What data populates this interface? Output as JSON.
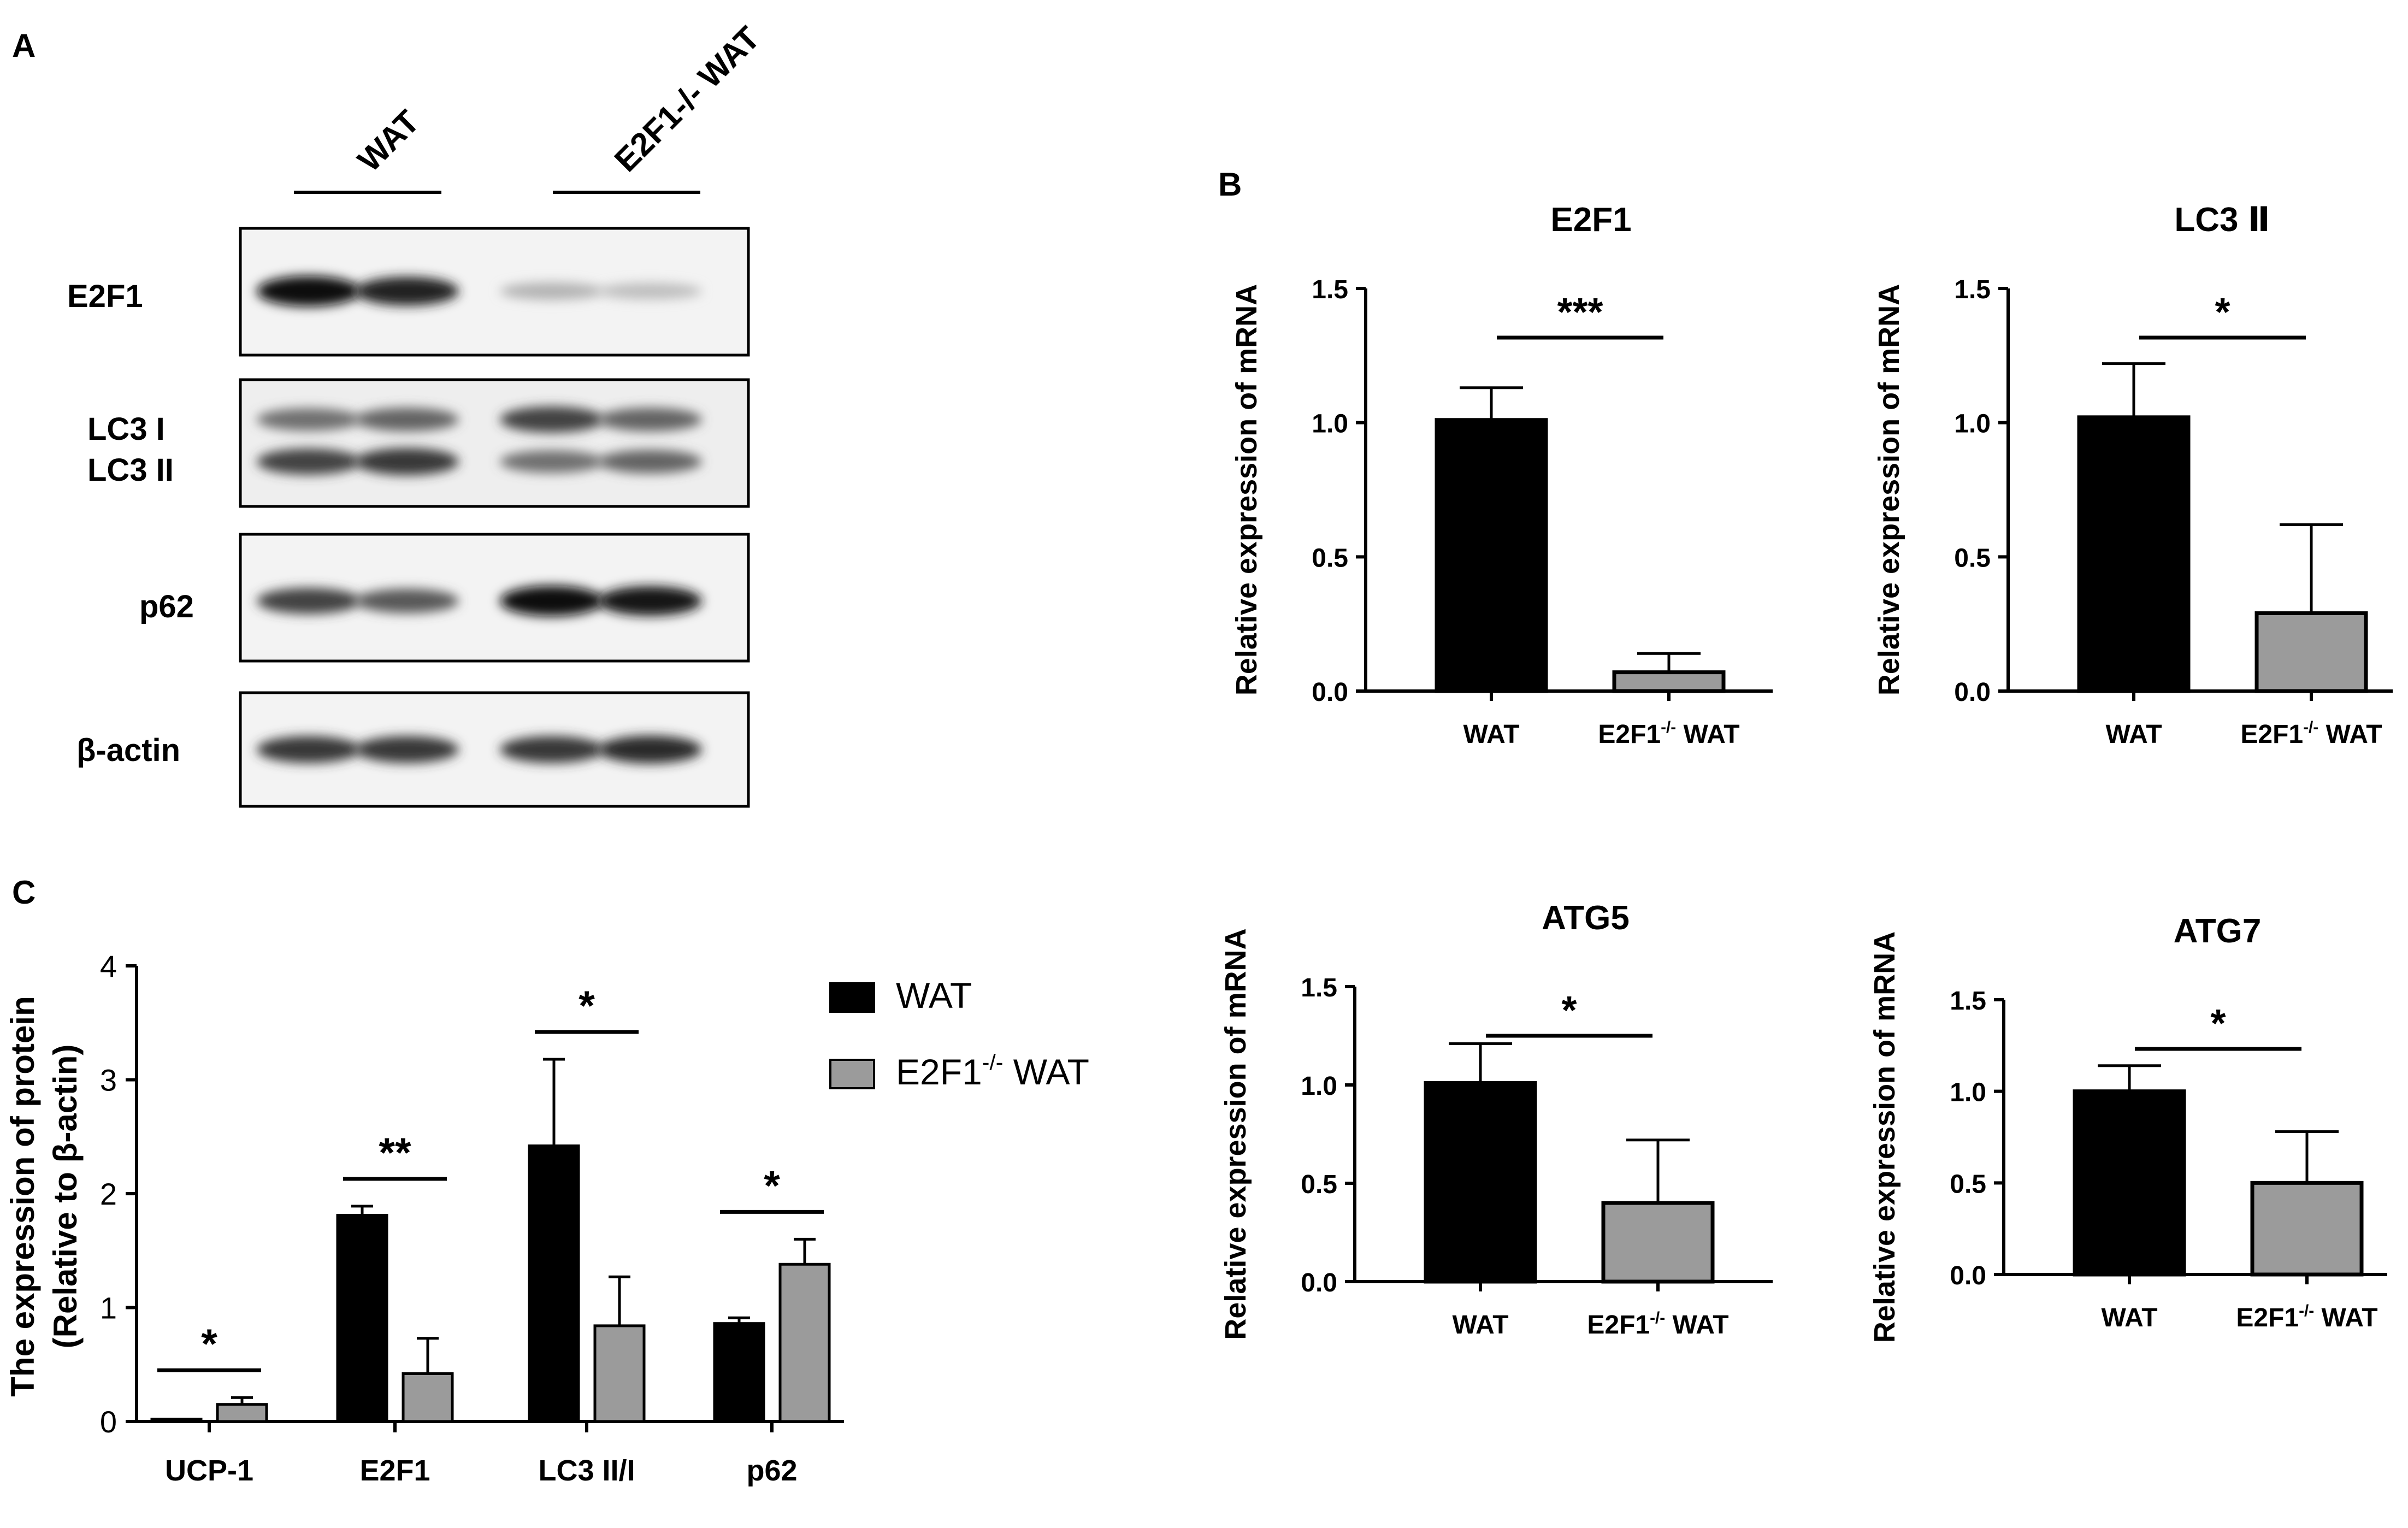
{
  "panels": {
    "A": "A",
    "B": "B",
    "C": "C"
  },
  "blot": {
    "group_labels": [
      "WAT",
      "E2F1-/- WAT"
    ],
    "rows": [
      {
        "label": "E2F1",
        "lanes": [
          1.0,
          0.9,
          0.25,
          0.2
        ]
      },
      {
        "label_top": "LC3 I",
        "label_bottom": "LC3 II",
        "lanes_top": [
          0.55,
          0.6,
          0.75,
          0.6
        ],
        "lanes_bottom": [
          0.75,
          0.8,
          0.55,
          0.6
        ]
      },
      {
        "label": "p62",
        "lanes": [
          0.75,
          0.65,
          1.0,
          0.95
        ]
      },
      {
        "label": "β-actin",
        "lanes": [
          0.8,
          0.8,
          0.8,
          0.85
        ]
      }
    ],
    "knockout_superscript": "-/-"
  },
  "chart_data": [
    {
      "id": "C",
      "type": "bar",
      "categories": [
        "UCP-1",
        "E2F1",
        "LC3 II/I",
        "p62"
      ],
      "ylabel_line1": "The expression of protein",
      "ylabel_line2": "(Relative to β-actin)",
      "ylim": [
        0,
        4
      ],
      "yticks": [
        "0",
        "1",
        "2",
        "3",
        "4"
      ],
      "series": [
        {
          "name": "WAT",
          "color": "#000000",
          "values": [
            0.02,
            1.81,
            2.42,
            0.86
          ],
          "errors": [
            0.0,
            0.08,
            0.76,
            0.05
          ]
        },
        {
          "name": "E2F1-/- WAT",
          "color": "#9b9b9b",
          "values": [
            0.15,
            0.42,
            0.84,
            1.38
          ],
          "errors": [
            0.06,
            0.31,
            0.43,
            0.22
          ]
        }
      ],
      "significance": [
        "*",
        "**",
        "*",
        "*"
      ],
      "legend": "right"
    },
    {
      "id": "E2F1",
      "type": "bar",
      "title": "E2F1",
      "categories": [
        "WAT",
        "E2F1-/- WAT"
      ],
      "values": [
        1.01,
        0.07
      ],
      "errors": [
        0.12,
        0.07
      ],
      "ylabel": "Relative expression of mRNA",
      "ylim": [
        0,
        1.5
      ],
      "yticks": [
        "0.0",
        "0.5",
        "1.0",
        "1.5"
      ],
      "significance": "***"
    },
    {
      "id": "LC3II",
      "type": "bar",
      "title": "LC3 Ⅱ",
      "categories": [
        "WAT",
        "E2F1-/- WAT"
      ],
      "values": [
        1.02,
        0.29
      ],
      "errors": [
        0.2,
        0.33
      ],
      "ylabel": "Relative expression of mRNA",
      "ylim": [
        0,
        1.5
      ],
      "yticks": [
        "0.0",
        "0.5",
        "1.0",
        "1.5"
      ],
      "significance": "*"
    },
    {
      "id": "ATG5",
      "type": "bar",
      "title": "ATG5",
      "categories": [
        "WAT",
        "E2F1-/- WAT"
      ],
      "values": [
        1.01,
        0.4
      ],
      "errors": [
        0.2,
        0.32
      ],
      "ylabel": "Relative expression of mRNA",
      "ylim": [
        0,
        1.5
      ],
      "yticks": [
        "0.0",
        "0.5",
        "1.0",
        "1.5"
      ],
      "significance": "*"
    },
    {
      "id": "ATG7",
      "type": "bar",
      "title": "ATG7",
      "categories": [
        "WAT",
        "E2F1-/- WAT"
      ],
      "values": [
        1.0,
        0.5
      ],
      "errors": [
        0.14,
        0.28
      ],
      "ylabel": "Relative expression of mRNA",
      "ylim": [
        0,
        1.5
      ],
      "yticks": [
        "0.0",
        "0.5",
        "1.0",
        "1.5"
      ],
      "significance": "*"
    }
  ]
}
